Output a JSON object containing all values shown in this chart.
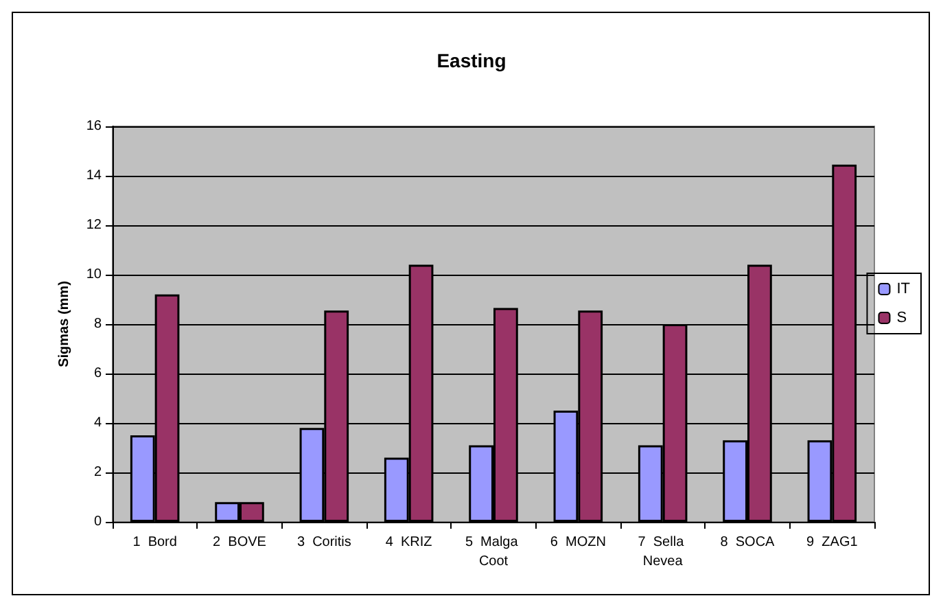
{
  "chart_data": {
    "type": "bar",
    "title": "Easting",
    "ylabel": "Sigmas (mm)",
    "categories": [
      "1  Bord",
      "2  BOVE",
      "3  Coritis",
      "4  KRIZ",
      "5  Malga Coot",
      "6  MOZN",
      "7  Sella Nevea",
      "8  SOCA",
      "9  ZAG1"
    ],
    "series": [
      {
        "name": "IT",
        "color": "#9999ff",
        "values": [
          3.5,
          0.8,
          3.8,
          2.6,
          3.1,
          4.5,
          3.1,
          3.3,
          3.3
        ]
      },
      {
        "name": "S",
        "color": "#993366",
        "values": [
          9.2,
          0.8,
          8.55,
          10.4,
          8.65,
          8.55,
          8.0,
          10.4,
          14.45
        ]
      }
    ],
    "ylim": [
      0,
      16
    ],
    "yticks": [
      0,
      2,
      4,
      6,
      8,
      10,
      12,
      14,
      16
    ],
    "grid": "y",
    "legend": "right"
  }
}
